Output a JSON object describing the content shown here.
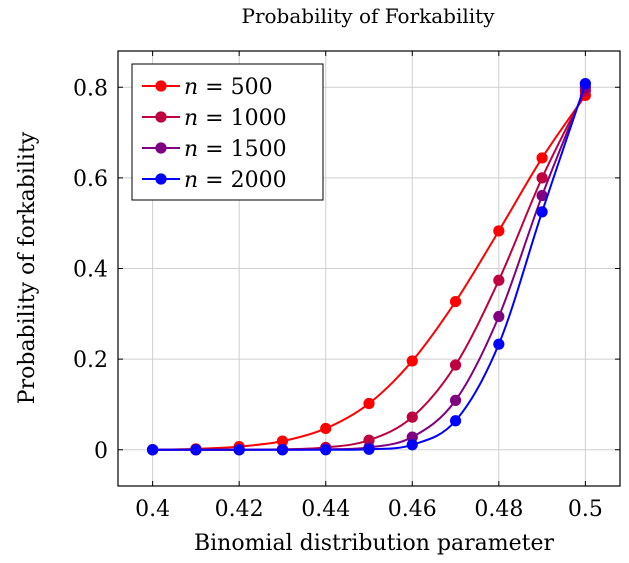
{
  "chart_data": {
    "type": "line",
    "title": "Probability of Forkability",
    "xlabel": "Binomial distribution parameter",
    "ylabel": "Probability of forkability",
    "xlim": [
      0.392,
      0.508
    ],
    "ylim": [
      -0.08,
      0.88
    ],
    "xticks": [
      0.4,
      0.42,
      0.44,
      0.46,
      0.48,
      0.5
    ],
    "xtick_labels": [
      "0.4",
      "0.42",
      "0.44",
      "0.46",
      "0.48",
      "0.5"
    ],
    "yticks": [
      0,
      0.2,
      0.4,
      0.6,
      0.8
    ],
    "ytick_labels": [
      "0",
      "0.2",
      "0.4",
      "0.6",
      "0.8"
    ],
    "grid": true,
    "legend_position": "top-left",
    "x": [
      0.4,
      0.41,
      0.42,
      0.43,
      0.44,
      0.45,
      0.46,
      0.47,
      0.48,
      0.49,
      0.5
    ],
    "series": [
      {
        "name": "n = 500",
        "name_var": "n",
        "name_value": "= 500",
        "color": "#ff0000",
        "values": [
          0.0,
          0.002,
          0.007,
          0.019,
          0.047,
          0.102,
          0.196,
          0.327,
          0.483,
          0.644,
          0.782
        ]
      },
      {
        "name": "n = 1000",
        "name_var": "n",
        "name_value": "= 1000",
        "color": "#bf0040",
        "values": [
          0.0,
          0.0,
          0.0,
          0.001,
          0.005,
          0.021,
          0.072,
          0.187,
          0.374,
          0.6,
          0.792
        ]
      },
      {
        "name": "n = 1500",
        "name_var": "n",
        "name_value": "= 1500",
        "color": "#7f0080",
        "values": [
          0.0,
          0.0,
          0.0,
          0.0,
          0.001,
          0.005,
          0.028,
          0.109,
          0.294,
          0.561,
          0.8
        ]
      },
      {
        "name": "n = 2000",
        "name_var": "n",
        "name_value": "= 2000",
        "color": "#0000ff",
        "values": [
          0.0,
          0.0,
          0.0,
          0.0,
          0.0,
          0.001,
          0.011,
          0.064,
          0.233,
          0.525,
          0.808
        ]
      }
    ]
  }
}
